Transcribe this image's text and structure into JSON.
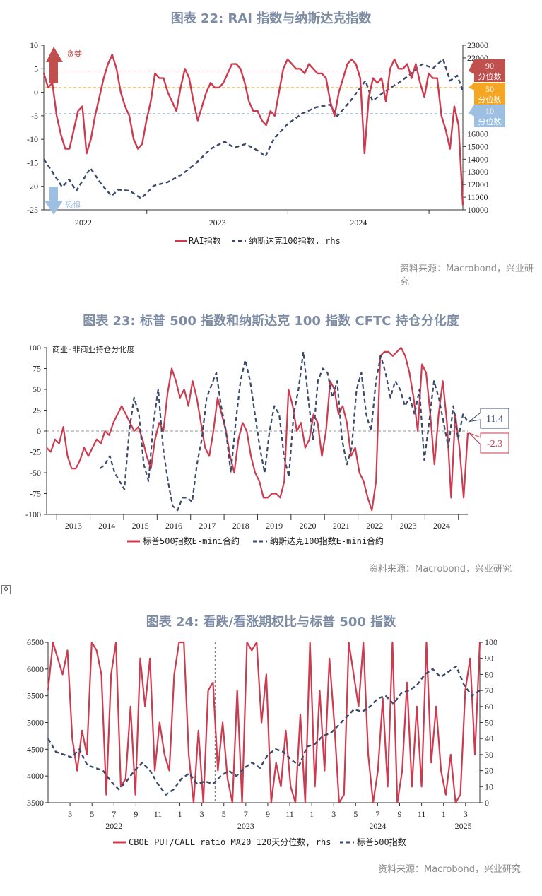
{
  "chart_data": [
    {
      "type": "line",
      "title": "图表 22: RAI 指数与纳斯达克指数",
      "source": "资料来源：Macrobond，兴业研究",
      "x_range": [
        2022.27,
        2025.24
      ],
      "left_axis": {
        "ylim": [
          -25,
          10
        ],
        "ticks": [
          "10",
          "5",
          "0",
          "-5",
          "-10",
          "-15",
          "-20",
          "-25"
        ],
        "tick_values": [
          10,
          5,
          0,
          -5,
          -10,
          -15,
          -20,
          -25
        ]
      },
      "right_axis": {
        "ylim": [
          10000,
          23000
        ],
        "ticks": [
          "23000",
          "22000",
          "16000",
          "15000",
          "14000",
          "13000",
          "12000",
          "11000",
          "10000"
        ],
        "tick_values": [
          23000,
          22000,
          16000,
          15000,
          14000,
          13000,
          12000,
          11000,
          10000
        ]
      },
      "x_ticks": [
        {
          "label": "2022",
          "value": 2022.5
        },
        {
          "label": "2023",
          "value": 2023.5
        },
        {
          "label": "2024",
          "value": 2024.5
        }
      ],
      "year_boundaries": [
        2023,
        2024,
        2025
      ],
      "legend": [
        "RAI指数",
        "纳斯达克100指数, rhs"
      ],
      "annotations": {
        "greed": "贪婪",
        "fear": "恐惧"
      },
      "thresholds": [
        {
          "value": 4.5,
          "label_num": "90",
          "label_text": "分位数",
          "color": "#f4a0ae",
          "box": "#c0504d"
        },
        {
          "value": 1,
          "label_num": "50",
          "label_text": "分位数",
          "color": "#f5a623",
          "box": "#f5a623"
        },
        {
          "value": -4.5,
          "label_num": "10",
          "label_text": "分位数",
          "color": "#a9c6e4",
          "box": "#9dc0e2"
        }
      ],
      "series": [
        {
          "name": "RAI指数",
          "axis": "left",
          "color": "#cc3b4f",
          "style": "solid",
          "values": [
            4,
            1,
            2,
            -5,
            -9,
            -12,
            -12,
            -8,
            -4,
            -3,
            -13,
            -10,
            -5,
            -1,
            3,
            6,
            8,
            5,
            0,
            -3,
            -5,
            -10,
            -12,
            -11,
            -6,
            -2,
            4,
            3,
            3,
            0,
            -2,
            -4,
            1,
            5,
            3,
            -2,
            -6,
            -3,
            0,
            2,
            1,
            1,
            2,
            4,
            6,
            6,
            5,
            2,
            -2,
            -4,
            -4,
            -6,
            -7,
            -4,
            -5,
            0,
            5,
            7,
            6,
            5,
            5,
            4,
            6,
            5,
            4,
            4,
            3,
            -2,
            -5,
            0,
            3,
            6,
            7,
            6,
            3,
            -13,
            -1,
            3,
            2,
            3,
            -2,
            5,
            7,
            5,
            5,
            6,
            3,
            6,
            2,
            -1,
            4,
            3,
            3,
            -5,
            -8,
            -12,
            -3,
            -7,
            -24
          ]
        },
        {
          "name": "纳斯达克100指数, rhs",
          "axis": "right",
          "color": "#3b4a6b",
          "style": "dashed",
          "points": [
            [
              2022.27,
              14000
            ],
            [
              2022.33,
              13000
            ],
            [
              2022.4,
              11800
            ],
            [
              2022.45,
              12400
            ],
            [
              2022.5,
              11500
            ],
            [
              2022.6,
              13300
            ],
            [
              2022.68,
              12000
            ],
            [
              2022.75,
              11100
            ],
            [
              2022.8,
              11600
            ],
            [
              2022.88,
              11500
            ],
            [
              2022.96,
              10900
            ],
            [
              2023.05,
              11900
            ],
            [
              2023.15,
              12200
            ],
            [
              2023.25,
              12800
            ],
            [
              2023.35,
              13700
            ],
            [
              2023.45,
              14800
            ],
            [
              2023.55,
              15400
            ],
            [
              2023.62,
              14900
            ],
            [
              2023.7,
              15200
            ],
            [
              2023.8,
              14600
            ],
            [
              2023.84,
              14200
            ],
            [
              2023.9,
              15600
            ],
            [
              2024.0,
              16800
            ],
            [
              2024.1,
              17600
            ],
            [
              2024.2,
              18100
            ],
            [
              2024.3,
              18300
            ],
            [
              2024.35,
              17400
            ],
            [
              2024.45,
              18700
            ],
            [
              2024.55,
              20200
            ],
            [
              2024.6,
              18600
            ],
            [
              2024.68,
              19300
            ],
            [
              2024.78,
              20000
            ],
            [
              2024.88,
              20800
            ],
            [
              2024.95,
              21500
            ],
            [
              2025.03,
              21200
            ],
            [
              2025.1,
              21900
            ],
            [
              2025.15,
              20200
            ],
            [
              2025.2,
              20600
            ],
            [
              2025.24,
              19400
            ]
          ]
        }
      ]
    },
    {
      "type": "line",
      "title": "图表 23: 标普 500 指数和纳斯达克 100 指数 CFTC 持仓分化度",
      "source": "资料来源：Macrobond，兴业研究",
      "ylabel": "商业-非商业持仓分化度",
      "x_range": [
        2012.7,
        2025.28
      ],
      "ylim": [
        -100,
        100
      ],
      "y_ticks": [
        "100",
        "75",
        "50",
        "25",
        "0",
        "-25",
        "-50",
        "-75",
        "-100"
      ],
      "y_tick_values": [
        100,
        75,
        50,
        25,
        0,
        -25,
        -50,
        -75,
        -100
      ],
      "x_ticks": [
        "2013",
        "2014",
        "2015",
        "2016",
        "2017",
        "2018",
        "2019",
        "2020",
        "2021",
        "2022",
        "2023",
        "2024"
      ],
      "legend": [
        "标普500指数E-mini合约",
        "纳斯达克100指数E-mini合约"
      ],
      "callouts": [
        {
          "label": "11.4",
          "value": 11.4,
          "color": "#3b4a6b"
        },
        {
          "label": "-2.3",
          "value": -2.3,
          "color": "#cc3b4f"
        }
      ],
      "series": [
        {
          "name": "标普500指数E-mini合约",
          "color": "#cc3b4f",
          "style": "solid",
          "start": 2012.7,
          "end": 2025.28,
          "values": [
            -20,
            -25,
            -10,
            -15,
            5,
            -30,
            -45,
            -45,
            -35,
            -20,
            -30,
            -20,
            -10,
            -15,
            0,
            -5,
            10,
            20,
            30,
            20,
            10,
            0,
            5,
            -10,
            -30,
            -45,
            -10,
            10,
            0,
            45,
            75,
            60,
            40,
            50,
            30,
            60,
            40,
            10,
            -20,
            -30,
            0,
            40,
            20,
            0,
            -30,
            -50,
            -10,
            10,
            0,
            -30,
            -50,
            -60,
            -80,
            -80,
            -75,
            -75,
            -80,
            -60,
            50,
            30,
            0,
            10,
            -20,
            -10,
            20,
            10,
            -30,
            0,
            60,
            50,
            20,
            30,
            10,
            -30,
            -20,
            -50,
            -60,
            -80,
            -95,
            -60,
            90,
            95,
            95,
            90,
            95,
            100,
            90,
            70,
            40,
            0,
            80,
            70,
            20,
            -40,
            20,
            60,
            10,
            -80,
            20,
            -20,
            -80,
            -2.3
          ]
        },
        {
          "name": "纳斯达克100指数E-mini合约",
          "color": "#3b4a6b",
          "style": "dashed",
          "start": 2014.3,
          "end": 2025.28,
          "values": [
            -45,
            -40,
            -30,
            -50,
            -60,
            -70,
            0,
            40,
            20,
            -40,
            -60,
            10,
            50,
            -20,
            -60,
            -90,
            -95,
            -80,
            -80,
            -85,
            -40,
            -10,
            40,
            55,
            70,
            30,
            0,
            -50,
            10,
            60,
            85,
            60,
            20,
            -20,
            -50,
            0,
            30,
            20,
            -30,
            -55,
            20,
            50,
            95,
            40,
            -10,
            60,
            75,
            70,
            40,
            60,
            -10,
            -40,
            -20,
            50,
            70,
            20,
            0,
            60,
            90,
            70,
            40,
            60,
            50,
            30,
            40,
            20,
            50,
            -35,
            10,
            60,
            40,
            10,
            -20,
            30,
            -10,
            20,
            11.4
          ]
        }
      ]
    },
    {
      "type": "line",
      "title": "图表 24: 看跌/看涨期权比与标普 500 指数",
      "source": "资料来源：Macrobond，兴业研究",
      "x_range_months": [
        0,
        39.3
      ],
      "left_axis": {
        "ylim": [
          3500,
          6500
        ],
        "ticks": [
          "6500",
          "6000",
          "5500",
          "5000",
          "4500",
          "4000",
          "3500"
        ],
        "tick_values": [
          6500,
          6000,
          5500,
          5000,
          4500,
          4000,
          3500
        ]
      },
      "right_axis": {
        "ylim": [
          0,
          100
        ],
        "ticks": [
          "100",
          "90",
          "80",
          "70",
          "60",
          "50",
          "40",
          "30",
          "20",
          "10",
          "0"
        ],
        "tick_values": [
          100,
          90,
          80,
          70,
          60,
          50,
          40,
          30,
          20,
          10,
          0
        ]
      },
      "month_ticks": [
        "3",
        "5",
        "7",
        "9",
        "11",
        "1",
        "3",
        "5",
        "7",
        "9",
        "11",
        "1",
        "3",
        "5",
        "7",
        "9",
        "11",
        "1",
        "3"
      ],
      "month_tick_values": [
        2,
        4,
        6,
        8,
        10,
        12,
        14,
        16,
        18,
        20,
        22,
        24,
        26,
        28,
        30,
        32,
        34,
        36,
        38
      ],
      "year_labels": [
        {
          "label": "2022",
          "month": 6
        },
        {
          "label": "2023",
          "month": 18
        },
        {
          "label": "2024",
          "month": 30
        },
        {
          "label": "2025",
          "month": 37.8
        }
      ],
      "marker_line_month": 15.2,
      "legend": [
        "CBOE PUT/CALL ratio MA20 120天分位数, rhs",
        "标普500指数"
      ],
      "series": [
        {
          "name": "CBOE PUT/CALL ratio MA20 120天分位数, rhs",
          "axis": "right",
          "color": "#cc3b4f",
          "style": "solid",
          "values": [
            70,
            100,
            90,
            80,
            95,
            40,
            20,
            45,
            30,
            100,
            95,
            80,
            5,
            80,
            100,
            10,
            15,
            60,
            5,
            90,
            60,
            90,
            20,
            50,
            30,
            20,
            80,
            100,
            100,
            30,
            0,
            45,
            0,
            70,
            75,
            20,
            50,
            15,
            0,
            70,
            0,
            100,
            95,
            100,
            50,
            80,
            0,
            25,
            10,
            45,
            10,
            0,
            55,
            0,
            100,
            10,
            70,
            20,
            90,
            50,
            0,
            5,
            100,
            80,
            60,
            100,
            30,
            0,
            20,
            65,
            10,
            100,
            0,
            20,
            75,
            10,
            60,
            10,
            100,
            25,
            60,
            20,
            5,
            30,
            0,
            5,
            70,
            90,
            30,
            100
          ]
        },
        {
          "name": "标普500指数",
          "axis": "left",
          "color": "#3b4a6b",
          "style": "dashed",
          "values": [
            4700,
            4450,
            4400,
            4350,
            4500,
            4200,
            4150,
            4100,
            3900,
            3750,
            3900,
            4100,
            4250,
            4100,
            3850,
            3650,
            3750,
            3950,
            4050,
            3850,
            3900,
            3850,
            4000,
            4100,
            4000,
            4150,
            4250,
            4150,
            4400,
            4500,
            4450,
            4300,
            4200,
            4550,
            4600,
            4750,
            4800,
            4950,
            5100,
            5250,
            5200,
            5300,
            5450,
            5500,
            5350,
            5550,
            5600,
            5700,
            5900,
            6000,
            5850,
            5950,
            6050,
            5700,
            5500,
            5600
          ]
        }
      ]
    }
  ]
}
